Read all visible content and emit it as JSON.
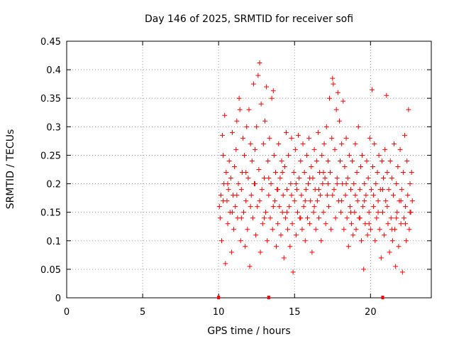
{
  "chart_data": {
    "type": "scatter",
    "title": "Day 146 of 2025, SRMTID for receiver sofi",
    "xlabel": "GPS time / hours",
    "ylabel": "SRMTID / TECUs",
    "xlim": [
      0,
      24
    ],
    "ylim": [
      0,
      0.45
    ],
    "x_ticks": [
      0,
      5,
      10,
      15,
      20
    ],
    "x_tick_labels": [
      "0",
      "5",
      "10",
      "15",
      "20"
    ],
    "y_ticks": [
      0,
      0.05,
      0.1,
      0.15,
      0.2,
      0.25,
      0.3,
      0.35,
      0.4,
      0.45
    ],
    "y_tick_labels": [
      "0",
      "0.05",
      "0.1",
      "0.15",
      "0.2",
      "0.25",
      "0.3",
      "0.35",
      "0.4",
      "0.45"
    ],
    "grid": true,
    "marker": "+",
    "color": "#ff0000",
    "series": [
      {
        "name": "SRMTID",
        "points": [
          [
            10.05,
            0.16
          ],
          [
            10.1,
            0.14
          ],
          [
            10.15,
            0.18
          ],
          [
            10.2,
            0.1
          ],
          [
            10.25,
            0.285
          ],
          [
            10.3,
            0.25
          ],
          [
            10.35,
            0.2
          ],
          [
            10.4,
            0.32
          ],
          [
            10.45,
            0.06
          ],
          [
            10.5,
            0.22
          ],
          [
            10.55,
            0.17
          ],
          [
            10.6,
            0.13
          ],
          [
            10.65,
            0.19
          ],
          [
            10.7,
            0.24
          ],
          [
            10.75,
            0.15
          ],
          [
            10.8,
            0.21
          ],
          [
            10.85,
            0.08
          ],
          [
            10.9,
            0.29
          ],
          [
            10.95,
            0.18
          ],
          [
            11.0,
            0.12
          ],
          [
            11.05,
            0.23
          ],
          [
            11.1,
            0.16
          ],
          [
            11.15,
            0.26
          ],
          [
            11.2,
            0.31
          ],
          [
            11.25,
            0.14
          ],
          [
            11.3,
            0.2
          ],
          [
            11.35,
            0.35
          ],
          [
            11.4,
            0.33
          ],
          [
            11.45,
            0.1
          ],
          [
            11.5,
            0.19
          ],
          [
            11.55,
            0.22
          ],
          [
            11.6,
            0.28
          ],
          [
            11.65,
            0.15
          ],
          [
            11.7,
            0.25
          ],
          [
            11.75,
            0.09
          ],
          [
            11.8,
            0.17
          ],
          [
            11.85,
            0.3
          ],
          [
            11.9,
            0.12
          ],
          [
            11.95,
            0.21
          ],
          [
            12.0,
            0.33
          ],
          [
            12.05,
            0.055
          ],
          [
            12.1,
            0.27
          ],
          [
            12.15,
            0.18
          ],
          [
            12.2,
            0.24
          ],
          [
            12.25,
            0.14
          ],
          [
            12.3,
            0.375
          ],
          [
            12.35,
            0.2
          ],
          [
            12.4,
            0.26
          ],
          [
            12.45,
            0.11
          ],
          [
            12.5,
            0.3
          ],
          [
            12.55,
            0.16
          ],
          [
            12.6,
            0.39
          ],
          [
            12.65,
            0.225
          ],
          [
            12.7,
            0.412
          ],
          [
            12.75,
            0.08
          ],
          [
            12.8,
            0.34
          ],
          [
            12.85,
            0.19
          ],
          [
            12.9,
            0.13
          ],
          [
            12.95,
            0.27
          ],
          [
            13.0,
            0.21
          ],
          [
            13.05,
            0.31
          ],
          [
            13.1,
            0.15
          ],
          [
            13.15,
            0.37
          ],
          [
            13.2,
            0.1
          ],
          [
            13.25,
            0.24
          ],
          [
            13.3,
            0.18
          ],
          [
            13.35,
            0.28
          ],
          [
            13.4,
            0.14
          ],
          [
            13.45,
            0.2
          ],
          [
            13.5,
            0.35
          ],
          [
            13.55,
            0.12
          ],
          [
            13.6,
            0.363
          ],
          [
            13.65,
            0.25
          ],
          [
            13.7,
            0.17
          ],
          [
            13.75,
            0.22
          ],
          [
            13.8,
            0.09
          ],
          [
            13.85,
            0.19
          ],
          [
            13.9,
            0.13
          ],
          [
            13.95,
            0.27
          ],
          [
            14.0,
            0.16
          ],
          [
            14.05,
            0.21
          ],
          [
            14.1,
            0.11
          ],
          [
            14.15,
            0.24
          ],
          [
            14.2,
            0.15
          ],
          [
            14.25,
            0.18
          ],
          [
            14.3,
            0.07
          ],
          [
            14.35,
            0.23
          ],
          [
            14.4,
            0.14
          ],
          [
            14.45,
            0.29
          ],
          [
            14.5,
            0.19
          ],
          [
            14.55,
            0.12
          ],
          [
            14.6,
            0.25
          ],
          [
            14.65,
            0.16
          ],
          [
            14.7,
            0.09
          ],
          [
            14.75,
            0.2
          ],
          [
            14.8,
            0.28
          ],
          [
            14.85,
            0.13
          ],
          [
            14.9,
            0.045
          ],
          [
            14.95,
            0.22
          ],
          [
            15.0,
            0.17
          ],
          [
            15.05,
            0.26
          ],
          [
            15.1,
            0.11
          ],
          [
            15.15,
            0.19
          ],
          [
            15.2,
            0.15
          ],
          [
            15.25,
            0.285
          ],
          [
            15.3,
            0.21
          ],
          [
            15.35,
            0.14
          ],
          [
            15.4,
            0.24
          ],
          [
            15.45,
            0.18
          ],
          [
            15.5,
            0.12
          ],
          [
            15.55,
            0.27
          ],
          [
            15.6,
            0.16
          ],
          [
            15.65,
            0.22
          ],
          [
            15.7,
            0.1
          ],
          [
            15.75,
            0.19
          ],
          [
            15.8,
            0.25
          ],
          [
            15.85,
            0.14
          ],
          [
            15.9,
            0.2
          ],
          [
            15.95,
            0.28
          ],
          [
            16.0,
            0.13
          ],
          [
            16.05,
            0.17
          ],
          [
            16.1,
            0.23
          ],
          [
            16.15,
            0.08
          ],
          [
            16.2,
            0.21
          ],
          [
            16.25,
            0.15
          ],
          [
            16.3,
            0.26
          ],
          [
            16.35,
            0.19
          ],
          [
            16.4,
            0.12
          ],
          [
            16.45,
            0.24
          ],
          [
            16.5,
            0.17
          ],
          [
            16.55,
            0.29
          ],
          [
            16.6,
            0.14
          ],
          [
            16.65,
            0.22
          ],
          [
            16.7,
            0.18
          ],
          [
            16.75,
            0.1
          ],
          [
            16.8,
            0.25
          ],
          [
            16.85,
            0.2
          ],
          [
            16.9,
            0.15
          ],
          [
            16.95,
            0.27
          ],
          [
            17.0,
            0.21
          ],
          [
            17.05,
            0.13
          ],
          [
            17.1,
            0.3
          ],
          [
            17.15,
            0.18
          ],
          [
            17.2,
            0.24
          ],
          [
            17.25,
            0.16
          ],
          [
            17.3,
            0.35
          ],
          [
            17.35,
            0.22
          ],
          [
            17.4,
            0.12
          ],
          [
            17.45,
            0.28
          ],
          [
            17.5,
            0.385
          ],
          [
            17.55,
            0.375
          ],
          [
            17.6,
            0.19
          ],
          [
            17.65,
            0.26
          ],
          [
            17.7,
            0.14
          ],
          [
            17.75,
            0.33
          ],
          [
            17.8,
            0.21
          ],
          [
            17.85,
            0.36
          ],
          [
            17.9,
            0.17
          ],
          [
            17.95,
            0.31
          ],
          [
            18.0,
            0.24
          ],
          [
            18.05,
            0.15
          ],
          [
            18.1,
            0.27
          ],
          [
            18.15,
            0.2
          ],
          [
            18.2,
            0.345
          ],
          [
            18.25,
            0.12
          ],
          [
            18.3,
            0.23
          ],
          [
            18.35,
            0.18
          ],
          [
            18.4,
            0.28
          ],
          [
            18.45,
            0.14
          ],
          [
            18.5,
            0.21
          ],
          [
            18.55,
            0.09
          ],
          [
            18.6,
            0.25
          ],
          [
            18.65,
            0.16
          ],
          [
            18.7,
            0.19
          ],
          [
            18.75,
            0.13
          ],
          [
            18.8,
            0.24
          ],
          [
            18.85,
            0.11
          ],
          [
            18.9,
            0.2
          ],
          [
            18.95,
            0.15
          ],
          [
            19.0,
            0.27
          ],
          [
            19.05,
            0.12
          ],
          [
            19.1,
            0.22
          ],
          [
            19.15,
            0.17
          ],
          [
            19.2,
            0.3
          ],
          [
            19.25,
            0.14
          ],
          [
            19.3,
            0.19
          ],
          [
            19.35,
            0.23
          ],
          [
            19.4,
            0.1
          ],
          [
            19.45,
            0.25
          ],
          [
            19.5,
            0.16
          ],
          [
            19.55,
            0.05
          ],
          [
            19.6,
            0.2
          ],
          [
            19.65,
            0.13
          ],
          [
            19.7,
            0.18
          ],
          [
            19.75,
            0.24
          ],
          [
            19.8,
            0.11
          ],
          [
            19.85,
            0.21
          ],
          [
            19.9,
            0.15
          ],
          [
            19.95,
            0.28
          ],
          [
            20.0,
            0.12
          ],
          [
            20.05,
            0.19
          ],
          [
            20.1,
            0.365
          ],
          [
            20.15,
            0.23
          ],
          [
            20.2,
            0.16
          ],
          [
            20.25,
            0.27
          ],
          [
            20.3,
            0.1
          ],
          [
            20.35,
            0.2
          ],
          [
            20.4,
            0.14
          ],
          [
            20.45,
            0.22
          ],
          [
            20.5,
            0.17
          ],
          [
            20.55,
            0.25
          ],
          [
            20.6,
            0.12
          ],
          [
            20.65,
            0.19
          ],
          [
            20.7,
            0.07
          ],
          [
            20.75,
            0.24
          ],
          [
            20.8,
            0.15
          ],
          [
            20.85,
            0.21
          ],
          [
            20.9,
            0.11
          ],
          [
            20.95,
            0.26
          ],
          [
            21.0,
            0.17
          ],
          [
            21.05,
            0.355
          ],
          [
            21.1,
            0.22
          ],
          [
            21.15,
            0.13
          ],
          [
            21.2,
            0.19
          ],
          [
            21.25,
            0.08
          ],
          [
            21.3,
            0.24
          ],
          [
            21.35,
            0.14
          ],
          [
            21.4,
            0.21
          ],
          [
            21.45,
            0.1
          ],
          [
            21.5,
            0.18
          ],
          [
            21.55,
            0.27
          ],
          [
            21.6,
            0.12
          ],
          [
            21.65,
            0.055
          ],
          [
            21.7,
            0.2
          ],
          [
            21.75,
            0.15
          ],
          [
            21.8,
            0.23
          ],
          [
            21.85,
            0.09
          ],
          [
            21.9,
            0.17
          ],
          [
            21.95,
            0.26
          ],
          [
            22.0,
            0.13
          ],
          [
            22.05,
            0.19
          ],
          [
            22.1,
            0.045
          ],
          [
            22.15,
            0.22
          ],
          [
            22.2,
            0.14
          ],
          [
            22.25,
            0.285
          ],
          [
            22.3,
            0.16
          ],
          [
            22.35,
            0.1
          ],
          [
            22.4,
            0.24
          ],
          [
            22.45,
            0.18
          ],
          [
            22.5,
            0.33
          ],
          [
            22.55,
            0.12
          ],
          [
            22.6,
            0.2
          ],
          [
            22.65,
            0.15
          ],
          [
            22.7,
            0.22
          ],
          [
            22.75,
            0.17
          ],
          [
            10.3,
            0.17
          ],
          [
            10.6,
            0.2
          ],
          [
            10.9,
            0.15
          ],
          [
            11.2,
            0.18
          ],
          [
            11.5,
            0.14
          ],
          [
            11.8,
            0.22
          ],
          [
            12.1,
            0.16
          ],
          [
            12.4,
            0.2
          ],
          [
            12.7,
            0.17
          ],
          [
            13.0,
            0.14
          ],
          [
            13.3,
            0.21
          ],
          [
            13.6,
            0.16
          ],
          [
            13.9,
            0.19
          ],
          [
            14.2,
            0.22
          ],
          [
            14.5,
            0.15
          ],
          [
            14.8,
            0.18
          ],
          [
            15.1,
            0.2
          ],
          [
            15.4,
            0.14
          ],
          [
            15.7,
            0.17
          ],
          [
            16.0,
            0.21
          ],
          [
            16.3,
            0.16
          ],
          [
            16.6,
            0.19
          ],
          [
            16.9,
            0.22
          ],
          [
            17.2,
            0.2
          ],
          [
            17.5,
            0.18
          ],
          [
            17.8,
            0.2
          ],
          [
            18.1,
            0.17
          ],
          [
            18.4,
            0.2
          ],
          [
            18.7,
            0.15
          ],
          [
            19.0,
            0.18
          ],
          [
            19.3,
            0.14
          ],
          [
            19.6,
            0.17
          ],
          [
            19.9,
            0.13
          ],
          [
            20.2,
            0.18
          ],
          [
            20.5,
            0.15
          ],
          [
            20.8,
            0.19
          ],
          [
            21.1,
            0.16
          ],
          [
            21.4,
            0.12
          ],
          [
            21.7,
            0.14
          ],
          [
            22.0,
            0.17
          ],
          [
            22.3,
            0.13
          ],
          [
            22.6,
            0.15
          ]
        ]
      }
    ],
    "baseline_markers_x": [
      10.0,
      13.3,
      20.8
    ]
  }
}
